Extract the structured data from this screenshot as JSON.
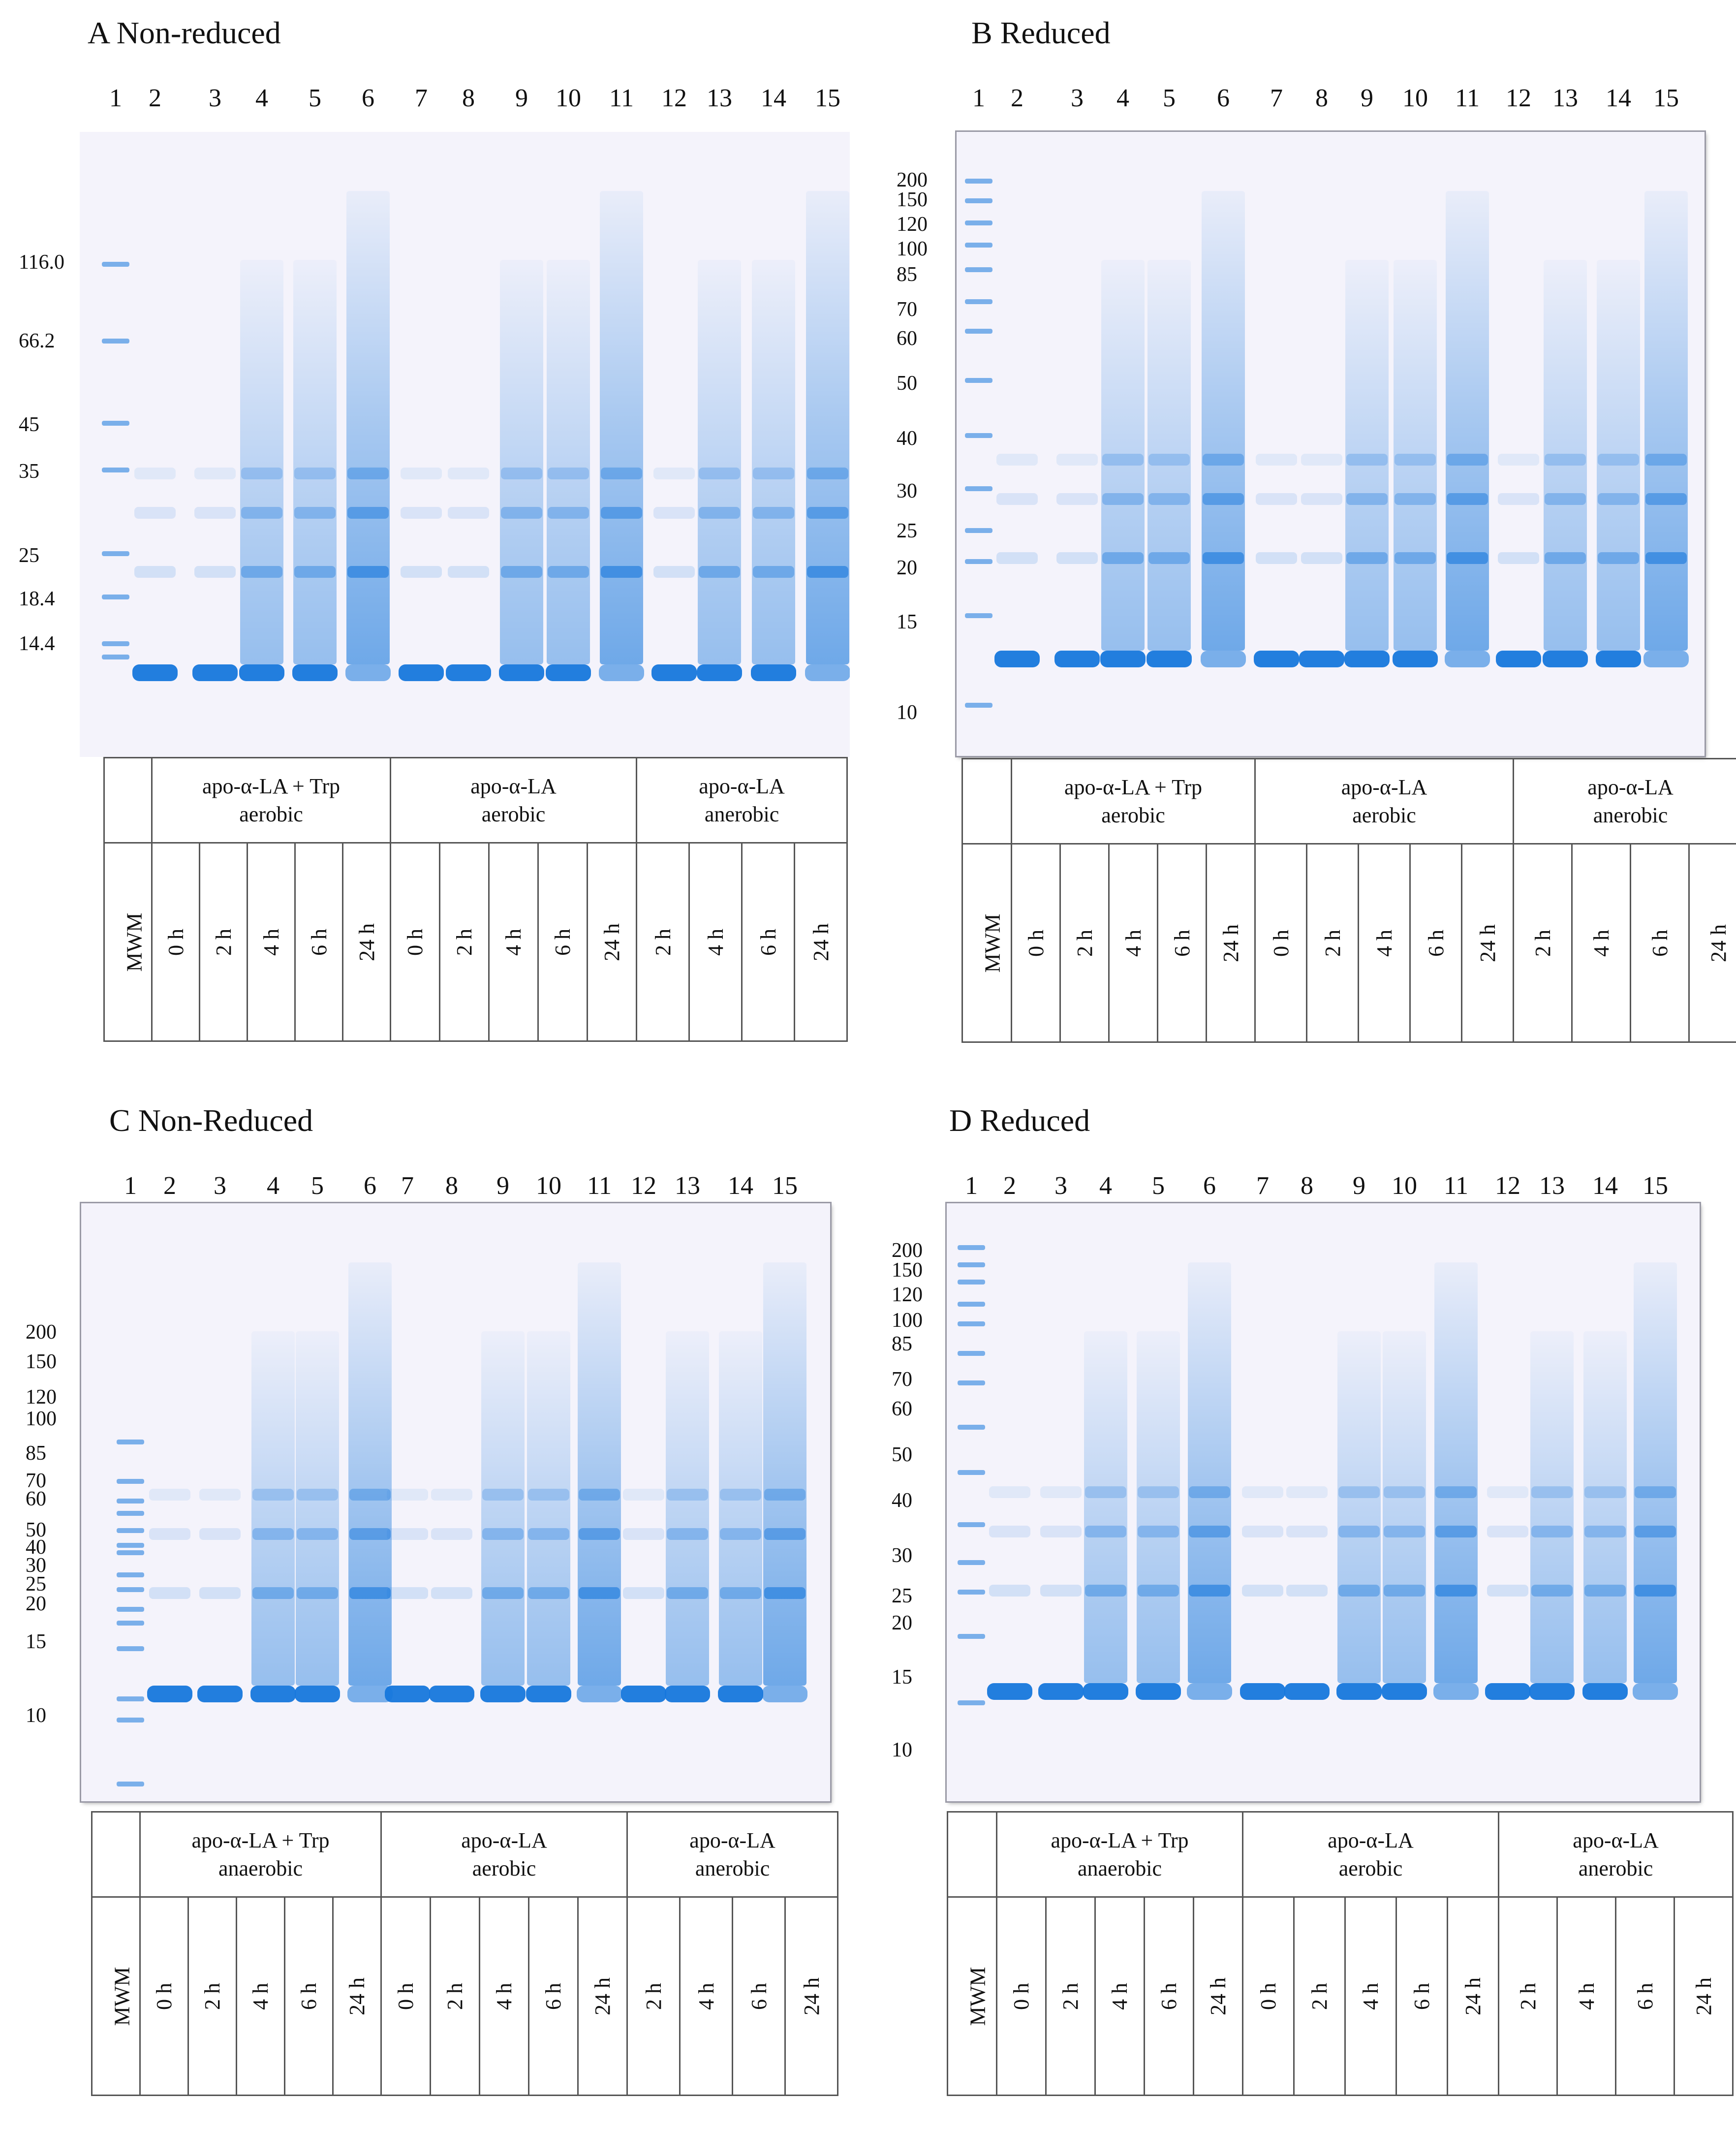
{
  "lane_numbers": [
    "1",
    "2",
    "3",
    "4",
    "5",
    "6",
    "7",
    "8",
    "9",
    "10",
    "11",
    "12",
    "13",
    "14",
    "15"
  ],
  "colors": {
    "band": "#1677dc",
    "gel_bg": "#f4f3fb",
    "marker": "#2f8fe6"
  },
  "panels": {
    "a": {
      "title": "A Non-reduced",
      "mw_labels": [
        "116.0",
        "66.2",
        "45",
        "35",
        "25",
        "18.4",
        "14.4"
      ],
      "groups": [
        {
          "line1": "apo-α-LA + Trp",
          "line2": "aerobic"
        },
        {
          "line1": "apo-α-LA",
          "line2": "aerobic"
        },
        {
          "line1": "apo-α-LA",
          "line2": "anerobic"
        }
      ],
      "lane_labels": [
        "MWM",
        "0 h",
        "2 h",
        "4 h",
        "6 h",
        "24 h",
        "0 h",
        "2 h",
        "4 h",
        "6 h",
        "24 h",
        "2 h",
        "4 h",
        "6 h",
        "24 h"
      ]
    },
    "b": {
      "title": "B Reduced",
      "mw_labels": [
        "200",
        "150",
        "120",
        "100",
        "85",
        "70",
        "60",
        "50",
        "40",
        "30",
        "25",
        "20",
        "15",
        "10"
      ],
      "groups": [
        {
          "line1": "apo-α-LA + Trp",
          "line2": "aerobic"
        },
        {
          "line1": "apo-α-LA",
          "line2": "aerobic"
        },
        {
          "line1": "apo-α-LA",
          "line2": "anerobic"
        }
      ],
      "lane_labels": [
        "MWM",
        "0 h",
        "2 h",
        "4 h",
        "6 h",
        "24 h",
        "0 h",
        "2 h",
        "4 h",
        "6 h",
        "24 h",
        "2 h",
        "4 h",
        "6 h",
        "24 h"
      ]
    },
    "c": {
      "title": "C Non-Reduced",
      "mw_labels": [
        "200",
        "150",
        "120",
        "100",
        "85",
        "70",
        "60",
        "50",
        "40",
        "30",
        "25",
        "20",
        "15",
        "10"
      ],
      "groups": [
        {
          "line1": "apo-α-LA + Trp",
          "line2": "anaerobic"
        },
        {
          "line1": "apo-α-LA",
          "line2": "aerobic"
        },
        {
          "line1": "apo-α-LA",
          "line2": "anerobic"
        }
      ],
      "lane_labels": [
        "MWM",
        "0 h",
        "2 h",
        "4 h",
        "6 h",
        "24 h",
        "0 h",
        "2 h",
        "4 h",
        "6 h",
        "24 h",
        "2 h",
        "4 h",
        "6 h",
        "24 h"
      ]
    },
    "d": {
      "title": "D Reduced",
      "mw_labels": [
        "200",
        "150",
        "120",
        "100",
        "85",
        "70",
        "60",
        "50",
        "40",
        "30",
        "25",
        "20",
        "15",
        "10"
      ],
      "groups": [
        {
          "line1": "apo-α-LA + Trp",
          "line2": "anaerobic"
        },
        {
          "line1": "apo-α-LA",
          "line2": "aerobic"
        },
        {
          "line1": "apo-α-LA",
          "line2": "anerobic"
        }
      ],
      "lane_labels": [
        "MWM",
        "0 h",
        "2 h",
        "4 h",
        "6 h",
        "24 h",
        "0 h",
        "2 h",
        "4 h",
        "6 h",
        "24 h",
        "2 h",
        "4 h",
        "6 h",
        "24 h"
      ]
    }
  }
}
